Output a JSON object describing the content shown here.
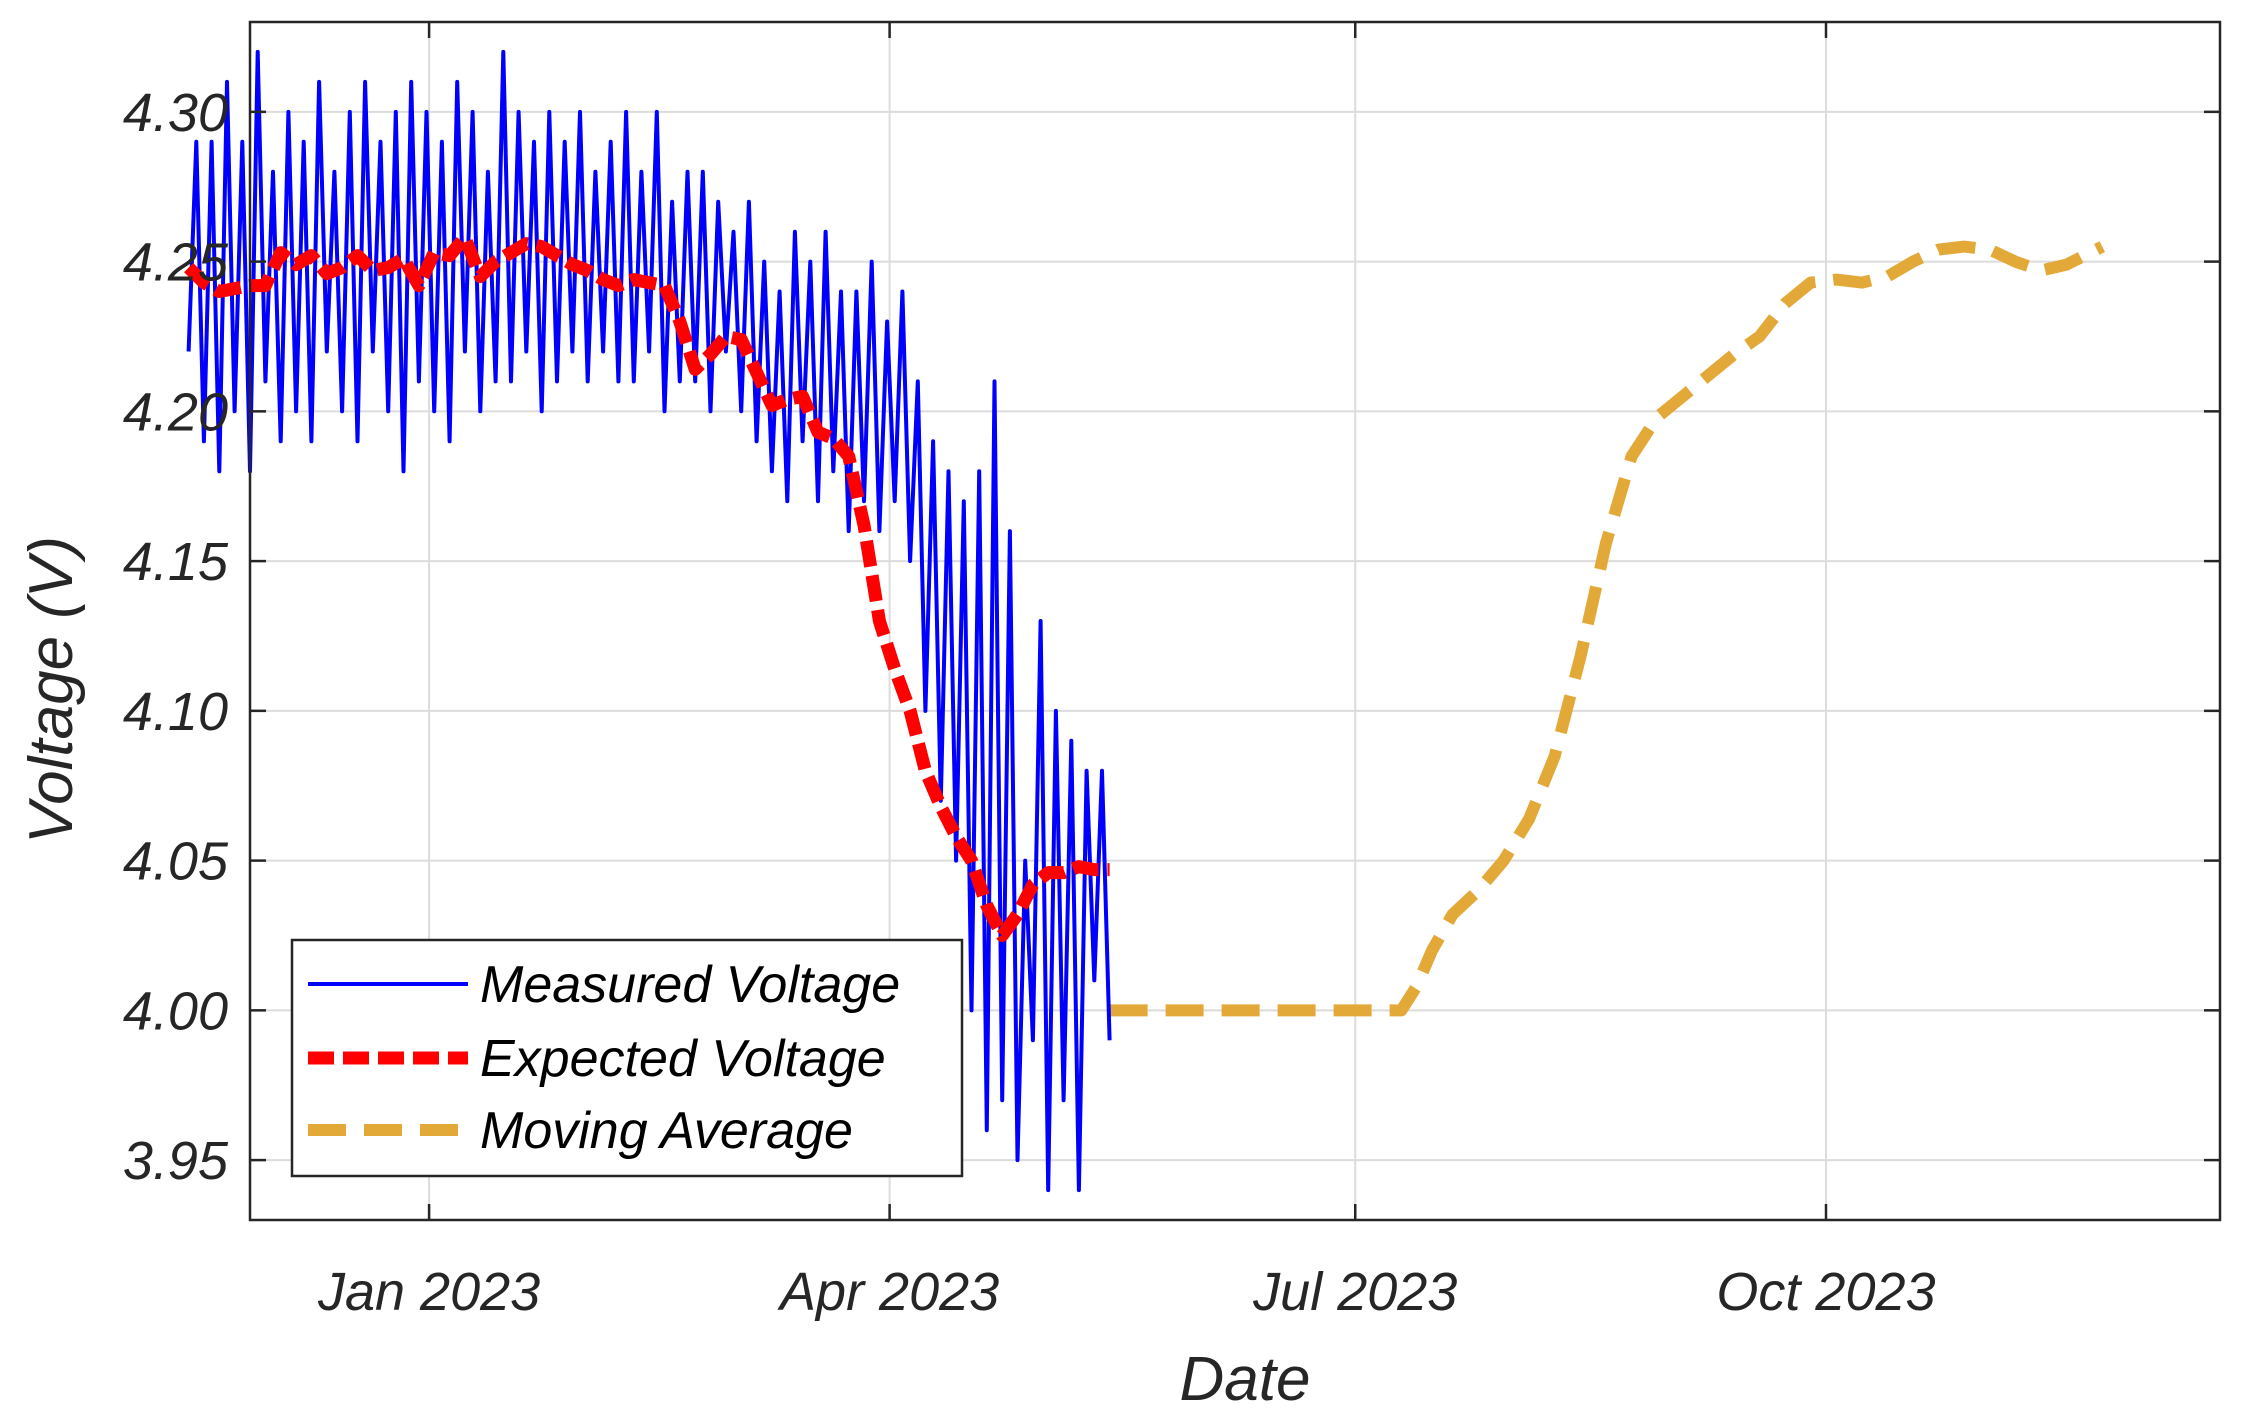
{
  "chart_data": {
    "type": "line",
    "title": "",
    "xlabel": "Date",
    "ylabel": "Voltage (V)",
    "ylim": [
      3.93,
      4.33
    ],
    "y_ticks": [
      3.95,
      4.0,
      4.05,
      4.1,
      4.15,
      4.2,
      4.25,
      4.3
    ],
    "y_tick_labels": [
      "3.95",
      "4.00",
      "4.05",
      "4.10",
      "4.15",
      "4.20",
      "4.25",
      "4.30"
    ],
    "x_range_days": [
      -35,
      350
    ],
    "x_ticks_days": [
      0,
      90,
      181,
      273
    ],
    "x_tick_labels": [
      "Jan 2023",
      "Apr 2023",
      "Jul 2023",
      "Oct 2023"
    ],
    "grid": true,
    "legend_position": "bottom-left",
    "series": [
      {
        "name": "Measured Voltage",
        "color": "#0000ff",
        "style": "solid",
        "x_days": [
          -47,
          -45.5,
          -44,
          -42.5,
          -41,
          -39.5,
          -38,
          -36.5,
          -35,
          -33.5,
          -32,
          -30.5,
          -29,
          -27.5,
          -26,
          -24.5,
          -23,
          -21.5,
          -20,
          -18.5,
          -17,
          -15.5,
          -14,
          -12.5,
          -11,
          -9.5,
          -8,
          -6.5,
          -5,
          -3.5,
          -2,
          -0.5,
          1,
          2.5,
          4,
          5.5,
          7,
          8.5,
          10,
          11.5,
          13,
          14.5,
          16,
          17.5,
          19,
          20.5,
          22,
          23.5,
          25,
          26.5,
          28,
          29.5,
          31,
          32.5,
          34,
          35.5,
          37,
          38.5,
          40,
          41.5,
          43,
          44.5,
          46,
          47.5,
          49,
          50.5,
          52,
          53.5,
          55,
          56.5,
          58,
          59.5,
          61,
          62.5,
          64,
          65.5,
          67,
          68.5,
          70,
          71.5,
          73,
          74.5,
          76,
          77.5,
          79,
          80.5,
          82,
          83.5,
          85,
          86.5,
          88,
          89.5,
          91,
          92.5,
          94,
          95.5,
          97,
          98.5,
          100,
          101.5,
          103,
          104.5,
          106,
          107.5,
          109,
          110.5,
          112,
          113.5,
          115,
          116.5,
          118,
          119.5,
          121,
          122.5,
          124,
          125.5,
          127,
          128.5,
          130,
          131.5,
          133
        ],
        "values": [
          4.22,
          4.29,
          4.19,
          4.29,
          4.18,
          4.31,
          4.2,
          4.29,
          4.18,
          4.32,
          4.21,
          4.28,
          4.19,
          4.3,
          4.2,
          4.29,
          4.19,
          4.31,
          4.22,
          4.28,
          4.2,
          4.3,
          4.19,
          4.31,
          4.22,
          4.29,
          4.2,
          4.3,
          4.18,
          4.31,
          4.21,
          4.3,
          4.2,
          4.29,
          4.19,
          4.31,
          4.22,
          4.3,
          4.2,
          4.28,
          4.21,
          4.32,
          4.21,
          4.3,
          4.22,
          4.29,
          4.2,
          4.3,
          4.21,
          4.29,
          4.22,
          4.3,
          4.21,
          4.28,
          4.22,
          4.29,
          4.21,
          4.3,
          4.21,
          4.28,
          4.22,
          4.3,
          4.2,
          4.27,
          4.21,
          4.28,
          4.21,
          4.28,
          4.2,
          4.27,
          4.22,
          4.26,
          4.2,
          4.27,
          4.19,
          4.25,
          4.18,
          4.24,
          4.17,
          4.26,
          4.19,
          4.25,
          4.17,
          4.26,
          4.18,
          4.24,
          4.16,
          4.24,
          4.17,
          4.25,
          4.16,
          4.23,
          4.17,
          4.24,
          4.15,
          4.21,
          4.1,
          4.19,
          4.07,
          4.18,
          4.05,
          4.17,
          4.0,
          4.18,
          3.96,
          4.21,
          3.97,
          4.16,
          3.95,
          4.05,
          3.99,
          4.13,
          3.94,
          4.1,
          3.97,
          4.09,
          3.94,
          4.08,
          4.01,
          4.08,
          3.99
        ]
      },
      {
        "name": "Expected Voltage",
        "color": "#ff0000",
        "style": "dashed",
        "x_days": [
          -47,
          -44,
          -41,
          -38,
          -35,
          -32,
          -29,
          -26,
          -23,
          -20,
          -17,
          -14,
          -11,
          -8,
          -5,
          -2,
          1,
          4,
          7,
          10,
          13,
          16,
          19,
          22,
          25,
          28,
          31,
          34,
          37,
          40,
          43,
          46,
          49,
          52,
          55,
          58,
          61,
          64,
          67,
          70,
          73,
          76,
          79,
          82,
          85,
          88,
          91,
          94,
          97,
          100,
          103,
          106,
          109,
          112,
          115,
          118,
          121,
          124,
          127,
          130,
          133
        ],
        "values": [
          4.248,
          4.243,
          4.24,
          4.241,
          4.242,
          4.242,
          4.253,
          4.249,
          4.252,
          4.246,
          4.248,
          4.252,
          4.247,
          4.248,
          4.251,
          4.242,
          4.253,
          4.252,
          4.258,
          4.245,
          4.25,
          4.253,
          4.256,
          4.255,
          4.252,
          4.249,
          4.247,
          4.244,
          4.242,
          4.244,
          4.243,
          4.242,
          4.23,
          4.214,
          4.219,
          4.225,
          4.224,
          4.213,
          4.202,
          4.204,
          4.205,
          4.193,
          4.191,
          4.185,
          4.162,
          4.13,
          4.114,
          4.1,
          4.08,
          4.068,
          4.058,
          4.05,
          4.035,
          4.025,
          4.032,
          4.042,
          4.046,
          4.046,
          4.048,
          4.047,
          4.047
        ]
      },
      {
        "name": "Moving Average",
        "color": "#e3a938",
        "style": "dashed",
        "x_days": [
          133,
          140,
          150,
          160,
          170,
          180,
          185,
          190,
          193,
          196,
          200,
          205,
          210,
          215,
          220,
          225,
          230,
          235,
          240,
          245,
          250,
          255,
          260,
          265,
          270,
          275,
          280,
          285,
          290,
          295,
          300,
          305,
          310,
          315,
          320,
          327
        ],
        "values": [
          4.0,
          4.0,
          4.0,
          4.0,
          4.0,
          4.0,
          4.0,
          4.0,
          4.008,
          4.02,
          4.032,
          4.04,
          4.05,
          4.064,
          4.085,
          4.118,
          4.156,
          4.185,
          4.198,
          4.205,
          4.212,
          4.219,
          4.225,
          4.236,
          4.243,
          4.244,
          4.243,
          4.245,
          4.25,
          4.254,
          4.255,
          4.254,
          4.25,
          4.247,
          4.249,
          4.255
        ]
      }
    ]
  }
}
